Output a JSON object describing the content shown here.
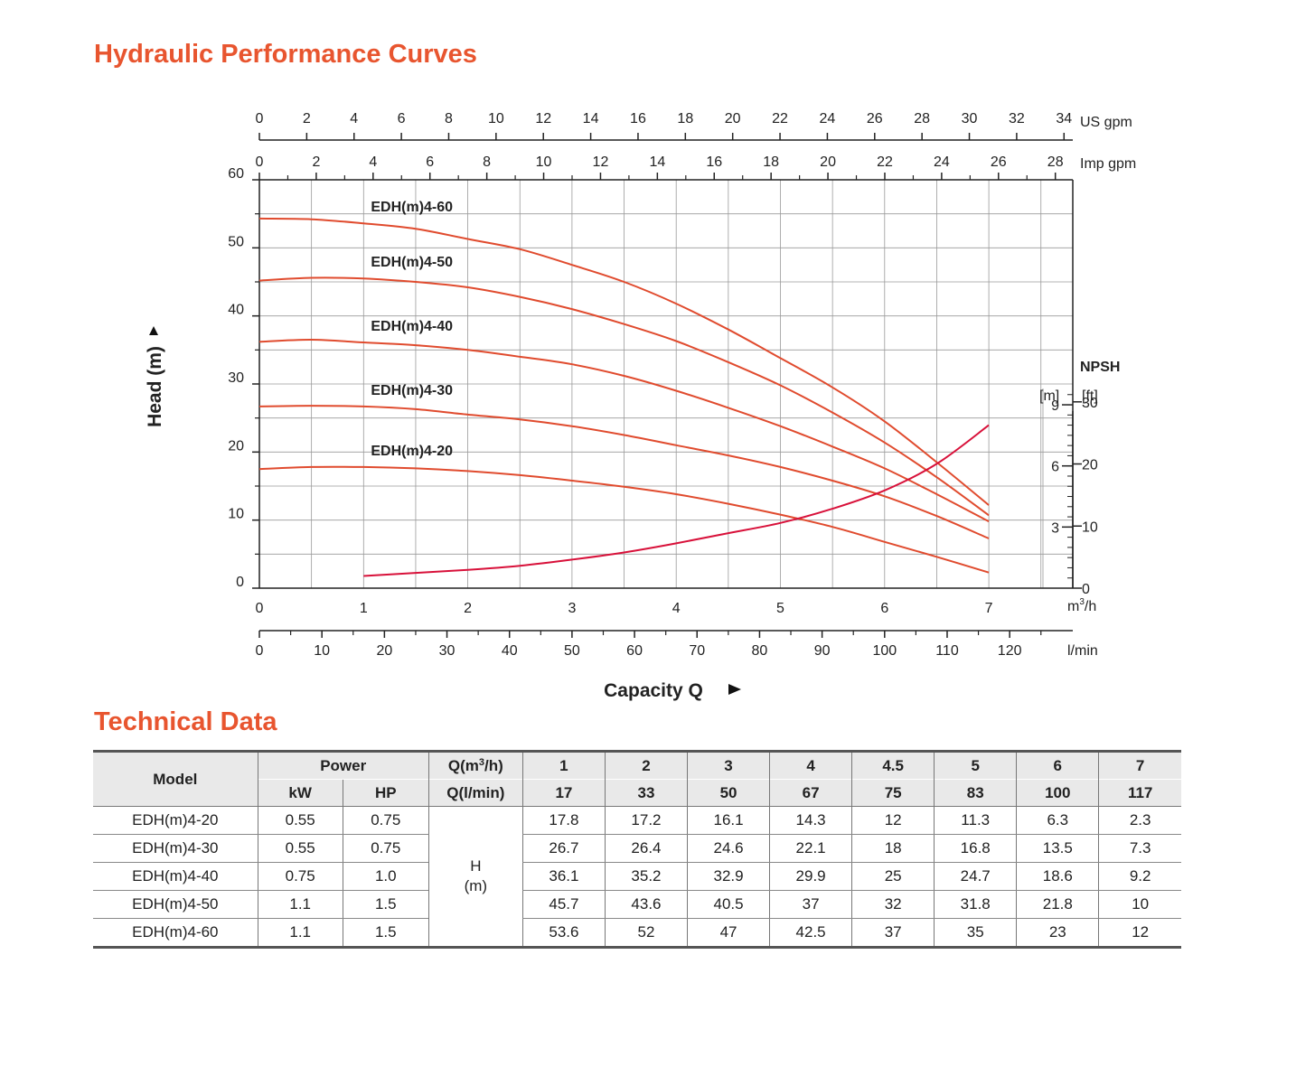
{
  "titles": {
    "curves": "Hydraulic Performance Curves",
    "technical": "Technical Data"
  },
  "colors": {
    "accent": "#e8552f",
    "curve": "#e04b2e",
    "npsh": "#d8113a",
    "grid": "#9a9a9a"
  },
  "chart_data": {
    "type": "line",
    "title": "Hydraulic Performance Curves",
    "xlabel": "Capacity Q",
    "ylabel": "Head (m)",
    "xlim": [
      0,
      7.8
    ],
    "ylim": [
      0,
      60
    ],
    "x_unit": "m³/h",
    "xlabel_lmin": "l/min",
    "xlabel_usgpm": "US gpm",
    "xlabel_impgpm": "Imp gpm",
    "npsh_title": "NPSH",
    "npsh_unit_m": "[m]",
    "npsh_unit_ft": "[ft]",
    "x_ticks_m3h": [
      "0",
      "1",
      "2",
      "3",
      "4",
      "5",
      "6",
      "7"
    ],
    "x_ticks_lmin": [
      "0",
      "10",
      "20",
      "30",
      "40",
      "50",
      "60",
      "70",
      "80",
      "90",
      "100",
      "110",
      "120"
    ],
    "x_ticks_usgpm": [
      "0",
      "2",
      "4",
      "6",
      "8",
      "10",
      "12",
      "14",
      "16",
      "18",
      "20",
      "22",
      "24",
      "26",
      "28",
      "30",
      "32",
      "34"
    ],
    "x_ticks_impgpm": [
      "0",
      "2",
      "4",
      "6",
      "8",
      "10",
      "12",
      "14",
      "16",
      "18",
      "20",
      "22",
      "24",
      "26",
      "28"
    ],
    "y_ticks": [
      "0",
      "10",
      "20",
      "30",
      "40",
      "50",
      "60"
    ],
    "npsh_ticks_m": [
      "3",
      "6",
      "9"
    ],
    "npsh_ticks_ft": [
      "0",
      "10",
      "20",
      "30"
    ],
    "npsh_ylim_m": [
      0,
      9.8
    ],
    "series": [
      {
        "name": "EDH(m)4-60",
        "x": [
          0,
          0.5,
          1,
          1.5,
          2,
          2.5,
          3,
          3.5,
          4,
          4.5,
          5,
          5.5,
          6,
          6.5,
          7
        ],
        "values": [
          54.3,
          54.2,
          53.6,
          52.8,
          51.3,
          49.8,
          47.5,
          45.0,
          41.8,
          38.0,
          33.8,
          29.5,
          24.5,
          18.5,
          12.2
        ]
      },
      {
        "name": "EDH(m)4-50",
        "x": [
          0,
          0.5,
          1,
          1.5,
          2,
          2.5,
          3,
          3.5,
          4,
          4.5,
          5,
          5.5,
          6,
          6.5,
          7
        ],
        "values": [
          45.2,
          45.6,
          45.5,
          45.0,
          44.2,
          42.8,
          41.0,
          38.8,
          36.3,
          33.2,
          29.8,
          25.8,
          21.4,
          16.3,
          10.7
        ]
      },
      {
        "name": "EDH(m)4-40",
        "x": [
          0,
          0.5,
          1,
          1.5,
          2,
          2.5,
          3,
          3.5,
          4,
          4.5,
          5,
          5.5,
          6,
          6.5,
          7
        ],
        "values": [
          36.2,
          36.5,
          36.1,
          35.7,
          35.0,
          34.0,
          32.9,
          31.2,
          29.0,
          26.5,
          23.8,
          20.8,
          17.6,
          13.8,
          9.8
        ]
      },
      {
        "name": "EDH(m)4-30",
        "x": [
          0,
          0.5,
          1,
          1.5,
          2,
          2.5,
          3,
          3.5,
          4,
          4.5,
          5,
          5.5,
          6,
          6.5,
          7
        ],
        "values": [
          26.7,
          26.8,
          26.7,
          26.3,
          25.5,
          24.8,
          23.8,
          22.5,
          21.0,
          19.5,
          17.8,
          15.8,
          13.5,
          10.6,
          7.3
        ]
      },
      {
        "name": "EDH(m)4-20",
        "x": [
          0,
          0.5,
          1,
          1.5,
          2,
          2.5,
          3,
          3.5,
          4,
          4.5,
          5,
          5.5,
          6,
          6.5,
          7
        ],
        "values": [
          17.5,
          17.8,
          17.8,
          17.6,
          17.2,
          16.6,
          15.8,
          14.9,
          13.8,
          12.4,
          10.8,
          9.0,
          6.8,
          4.6,
          2.3
        ]
      },
      {
        "name": "NPSH",
        "x": [
          1,
          1.5,
          2,
          2.5,
          3,
          3.5,
          4,
          4.5,
          5,
          5.5,
          6,
          6.5,
          7
        ],
        "values": [
          0.6,
          0.75,
          0.9,
          1.1,
          1.4,
          1.75,
          2.2,
          2.7,
          3.2,
          3.9,
          4.8,
          6.1,
          8.0
        ]
      }
    ],
    "labels": [
      "EDH(m)4-60",
      "EDH(m)4-50",
      "EDH(m)4-40",
      "EDH(m)4-30",
      "EDH(m)4-20"
    ]
  },
  "table": {
    "model_header": "Model",
    "power_header": "Power",
    "kw_header": "kW",
    "hp_header": "HP",
    "q_m3h_header": "Q(m",
    "q_m3h_sup": "3",
    "q_m3h_tail": "/h)",
    "q_lmin_header": "Q(l/min)",
    "q_m3h": [
      "1",
      "2",
      "3",
      "4",
      "4.5",
      "5",
      "6",
      "7"
    ],
    "q_lmin": [
      "17",
      "33",
      "50",
      "67",
      "75",
      "83",
      "100",
      "117"
    ],
    "h_label": "H",
    "h_unit": "(m)",
    "rows": [
      {
        "model": "EDH(m)4-20",
        "kw": "0.55",
        "hp": "0.75",
        "h": [
          "17.8",
          "17.2",
          "16.1",
          "14.3",
          "12",
          "11.3",
          "6.3",
          "2.3"
        ]
      },
      {
        "model": "EDH(m)4-30",
        "kw": "0.55",
        "hp": "0.75",
        "h": [
          "26.7",
          "26.4",
          "24.6",
          "22.1",
          "18",
          "16.8",
          "13.5",
          "7.3"
        ]
      },
      {
        "model": "EDH(m)4-40",
        "kw": "0.75",
        "hp": "1.0",
        "h": [
          "36.1",
          "35.2",
          "32.9",
          "29.9",
          "25",
          "24.7",
          "18.6",
          "9.2"
        ]
      },
      {
        "model": "EDH(m)4-50",
        "kw": "1.1",
        "hp": "1.5",
        "h": [
          "45.7",
          "43.6",
          "40.5",
          "37",
          "32",
          "31.8",
          "21.8",
          "10"
        ]
      },
      {
        "model": "EDH(m)4-60",
        "kw": "1.1",
        "hp": "1.5",
        "h": [
          "53.6",
          "52",
          "47",
          "42.5",
          "37",
          "35",
          "23",
          "12"
        ]
      }
    ]
  }
}
